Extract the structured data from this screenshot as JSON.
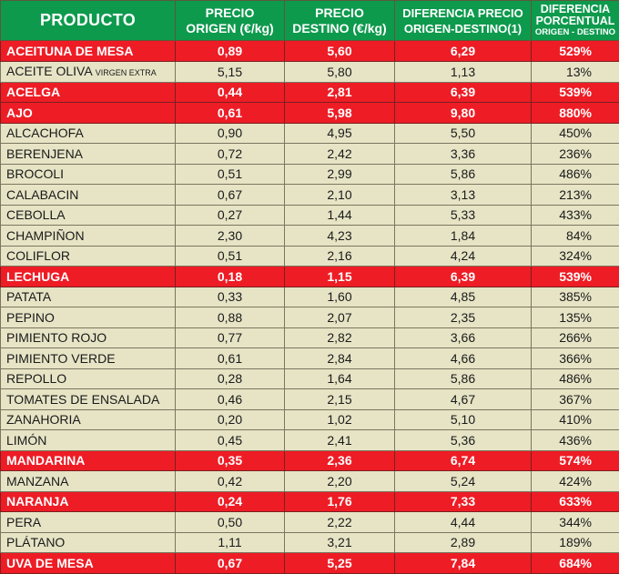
{
  "table": {
    "headers": {
      "producto": "PRODUCTO",
      "precio_origen_l1": "PRECIO",
      "precio_origen_l2": "ORIGEN (€/kg)",
      "precio_destino_l1": "PRECIO",
      "precio_destino_l2": "DESTINO (€/kg)",
      "diferencia_l1": "DIFERENCIA PRECIO",
      "diferencia_l2": "ORIGEN-DESTINO(1)",
      "porcentual_l1": "DIFERENCIA",
      "porcentual_l2": "PORCENTUAL",
      "porcentual_l3": "ORIGEN - DESTINO"
    },
    "colors": {
      "header_bg": "#0d9a4d",
      "highlight_bg": "#ee1c25",
      "row_bg": "#e6e4c5"
    },
    "rows": [
      {
        "producto": "ACEITUNA  DE MESA",
        "sub": "",
        "origen": "0,89",
        "destino": "5,60",
        "diferencia": "6,29",
        "porcentual": "529%",
        "highlight": true
      },
      {
        "producto": "ACEITE OLIVA ",
        "sub": "VIRGEN EXTRA",
        "origen": "5,15",
        "destino": "5,80",
        "diferencia": "1,13",
        "porcentual": "13%",
        "highlight": false
      },
      {
        "producto": "ACELGA",
        "sub": "",
        "origen": "0,44",
        "destino": "2,81",
        "diferencia": "6,39",
        "porcentual": "539%",
        "highlight": true
      },
      {
        "producto": "AJO",
        "sub": "",
        "origen": "0,61",
        "destino": "5,98",
        "diferencia": "9,80",
        "porcentual": "880%",
        "highlight": true
      },
      {
        "producto": "ALCACHOFA",
        "sub": "",
        "origen": "0,90",
        "destino": "4,95",
        "diferencia": "5,50",
        "porcentual": "450%",
        "highlight": false
      },
      {
        "producto": "BERENJENA",
        "sub": "",
        "origen": "0,72",
        "destino": "2,42",
        "diferencia": "3,36",
        "porcentual": "236%",
        "highlight": false
      },
      {
        "producto": "BROCOLI",
        "sub": "",
        "origen": "0,51",
        "destino": "2,99",
        "diferencia": "5,86",
        "porcentual": "486%",
        "highlight": false
      },
      {
        "producto": "CALABACIN",
        "sub": "",
        "origen": "0,67",
        "destino": "2,10",
        "diferencia": "3,13",
        "porcentual": "213%",
        "highlight": false
      },
      {
        "producto": "CEBOLLA",
        "sub": "",
        "origen": "0,27",
        "destino": "1,44",
        "diferencia": "5,33",
        "porcentual": "433%",
        "highlight": false
      },
      {
        "producto": "CHAMPIÑON",
        "sub": "",
        "origen": "2,30",
        "destino": "4,23",
        "diferencia": "1,84",
        "porcentual": "84%",
        "highlight": false
      },
      {
        "producto": "COLIFLOR",
        "sub": "",
        "origen": "0,51",
        "destino": "2,16",
        "diferencia": "4,24",
        "porcentual": "324%",
        "highlight": false
      },
      {
        "producto": "LECHUGA",
        "sub": "",
        "origen": "0,18",
        "destino": "1,15",
        "diferencia": "6,39",
        "porcentual": "539%",
        "highlight": true
      },
      {
        "producto": "PATATA",
        "sub": "",
        "origen": "0,33",
        "destino": "1,60",
        "diferencia": "4,85",
        "porcentual": "385%",
        "highlight": false
      },
      {
        "producto": "PEPINO",
        "sub": "",
        "origen": "0,88",
        "destino": "2,07",
        "diferencia": "2,35",
        "porcentual": "135%",
        "highlight": false
      },
      {
        "producto": "PIMIENTO ROJO",
        "sub": "",
        "origen": "0,77",
        "destino": "2,82",
        "diferencia": "3,66",
        "porcentual": "266%",
        "highlight": false
      },
      {
        "producto": "PIMIENTO VERDE",
        "sub": "",
        "origen": "0,61",
        "destino": "2,84",
        "diferencia": "4,66",
        "porcentual": "366%",
        "highlight": false
      },
      {
        "producto": "REPOLLO",
        "sub": "",
        "origen": "0,28",
        "destino": "1,64",
        "diferencia": "5,86",
        "porcentual": "486%",
        "highlight": false
      },
      {
        "producto": "TOMATES DE ENSALADA",
        "sub": "",
        "origen": "0,46",
        "destino": "2,15",
        "diferencia": "4,67",
        "porcentual": "367%",
        "highlight": false
      },
      {
        "producto": "ZANAHORIA",
        "sub": "",
        "origen": "0,20",
        "destino": "1,02",
        "diferencia": "5,10",
        "porcentual": "410%",
        "highlight": false
      },
      {
        "producto": "LIMÓN",
        "sub": "",
        "origen": "0,45",
        "destino": "2,41",
        "diferencia": "5,36",
        "porcentual": "436%",
        "highlight": false
      },
      {
        "producto": "MANDARINA",
        "sub": "",
        "origen": "0,35",
        "destino": "2,36",
        "diferencia": "6,74",
        "porcentual": "574%",
        "highlight": true
      },
      {
        "producto": "MANZANA",
        "sub": "",
        "origen": "0,42",
        "destino": "2,20",
        "diferencia": "5,24",
        "porcentual": "424%",
        "highlight": false
      },
      {
        "producto": "NARANJA",
        "sub": "",
        "origen": "0,24",
        "destino": "1,76",
        "diferencia": "7,33",
        "porcentual": "633%",
        "highlight": true
      },
      {
        "producto": "PERA",
        "sub": "",
        "origen": "0,50",
        "destino": "2,22",
        "diferencia": "4,44",
        "porcentual": "344%",
        "highlight": false
      },
      {
        "producto": "PLÁTANO",
        "sub": "",
        "origen": "1,11",
        "destino": "3,21",
        "diferencia": "2,89",
        "porcentual": "189%",
        "highlight": false
      },
      {
        "producto": "UVA DE MESA",
        "sub": "",
        "origen": "0,67",
        "destino": "5,25",
        "diferencia": "7,84",
        "porcentual": "684%",
        "highlight": true
      }
    ]
  }
}
